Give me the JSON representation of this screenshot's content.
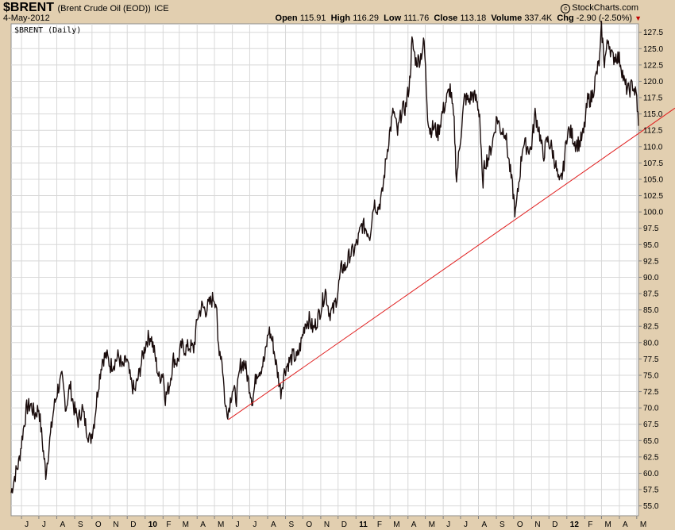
{
  "header": {
    "symbol": "$BRENT",
    "description": "(Brent Crude Oil (EOD))",
    "exchange": "ICE",
    "date": "4-May-2012",
    "copyright": "StockCharts.com",
    "open_label": "Open",
    "open": "115.91",
    "high_label": "High",
    "high": "116.29",
    "low_label": "Low",
    "low": "111.76",
    "close_label": "Close",
    "close": "113.18",
    "volume_label": "Volume",
    "volume": "337.4K",
    "chg_label": "Chg",
    "chg": "-2.90 (-2.50%)",
    "chg_color": "#c00000"
  },
  "chart_data": {
    "type": "line",
    "title": "$BRENT (Daily)",
    "ylim": [
      53.5,
      128.8
    ],
    "y_ticks": [
      55.0,
      57.5,
      60.0,
      62.5,
      65.0,
      67.5,
      70.0,
      72.5,
      75.0,
      77.5,
      80.0,
      82.5,
      85.0,
      87.5,
      90.0,
      92.5,
      95.0,
      97.5,
      100.0,
      102.5,
      105.0,
      107.5,
      110.0,
      112.5,
      115.0,
      117.5,
      120.0,
      122.5,
      125.0,
      127.5
    ],
    "y_tick_labels": [
      "55.0",
      "57.5",
      "60.0",
      "62.5",
      "65.0",
      "67.5",
      "70.0",
      "72.5",
      "75.0",
      "77.5",
      "80.0",
      "82.5",
      "85.0",
      "87.5",
      "90.0",
      "92.5",
      "95.0",
      "97.5",
      "100.0",
      "102.5",
      "105.0",
      "107.5",
      "110.0",
      "112.5",
      "115.0",
      "117.5",
      "120.0",
      "122.5",
      "125.0",
      "127.5"
    ],
    "x_range": [
      "2009-05-14",
      "2012-05-04"
    ],
    "x_ticks": [
      {
        "label": "J",
        "date": "2009-06-01",
        "bold": false
      },
      {
        "label": "J",
        "date": "2009-07-01",
        "bold": false
      },
      {
        "label": "A",
        "date": "2009-08-01",
        "bold": false
      },
      {
        "label": "S",
        "date": "2009-09-01",
        "bold": false
      },
      {
        "label": "O",
        "date": "2009-10-01",
        "bold": false
      },
      {
        "label": "N",
        "date": "2009-11-01",
        "bold": false
      },
      {
        "label": "D",
        "date": "2009-12-01",
        "bold": false
      },
      {
        "label": "10",
        "date": "2010-01-01",
        "bold": true
      },
      {
        "label": "F",
        "date": "2010-02-01",
        "bold": false
      },
      {
        "label": "M",
        "date": "2010-03-01",
        "bold": false
      },
      {
        "label": "A",
        "date": "2010-04-01",
        "bold": false
      },
      {
        "label": "M",
        "date": "2010-05-01",
        "bold": false
      },
      {
        "label": "J",
        "date": "2010-06-01",
        "bold": false
      },
      {
        "label": "J",
        "date": "2010-07-01",
        "bold": false
      },
      {
        "label": "A",
        "date": "2010-08-01",
        "bold": false
      },
      {
        "label": "S",
        "date": "2010-09-01",
        "bold": false
      },
      {
        "label": "O",
        "date": "2010-10-01",
        "bold": false
      },
      {
        "label": "N",
        "date": "2010-11-01",
        "bold": false
      },
      {
        "label": "D",
        "date": "2010-12-01",
        "bold": false
      },
      {
        "label": "11",
        "date": "2011-01-01",
        "bold": true
      },
      {
        "label": "F",
        "date": "2011-02-01",
        "bold": false
      },
      {
        "label": "M",
        "date": "2011-03-01",
        "bold": false
      },
      {
        "label": "A",
        "date": "2011-04-01",
        "bold": false
      },
      {
        "label": "M",
        "date": "2011-05-01",
        "bold": false
      },
      {
        "label": "J",
        "date": "2011-06-01",
        "bold": false
      },
      {
        "label": "J",
        "date": "2011-07-01",
        "bold": false
      },
      {
        "label": "A",
        "date": "2011-08-01",
        "bold": false
      },
      {
        "label": "S",
        "date": "2011-09-01",
        "bold": false
      },
      {
        "label": "O",
        "date": "2011-10-01",
        "bold": false
      },
      {
        "label": "N",
        "date": "2011-11-01",
        "bold": false
      },
      {
        "label": "D",
        "date": "2011-12-01",
        "bold": false
      },
      {
        "label": "12",
        "date": "2012-01-01",
        "bold": true
      },
      {
        "label": "F",
        "date": "2012-02-01",
        "bold": false
      },
      {
        "label": "M",
        "date": "2012-03-01",
        "bold": false
      },
      {
        "label": "A",
        "date": "2012-04-01",
        "bold": false
      },
      {
        "label": "M",
        "date": "2012-05-01",
        "bold": false
      }
    ],
    "grid": true,
    "series": [
      {
        "color": "#1a0c0c",
        "points": [
          [
            "2009-05-14",
            57.0
          ],
          [
            "2009-05-20",
            59.5
          ],
          [
            "2009-05-27",
            61.5
          ],
          [
            "2009-06-03",
            66.0
          ],
          [
            "2009-06-10",
            70.0
          ],
          [
            "2009-06-17",
            70.5
          ],
          [
            "2009-06-24",
            69.0
          ],
          [
            "2009-07-01",
            70.0
          ],
          [
            "2009-07-08",
            64.0
          ],
          [
            "2009-07-13",
            60.0
          ],
          [
            "2009-07-20",
            65.0
          ],
          [
            "2009-07-27",
            70.0
          ],
          [
            "2009-08-03",
            73.0
          ],
          [
            "2009-08-10",
            74.5
          ],
          [
            "2009-08-17",
            70.0
          ],
          [
            "2009-08-24",
            73.5
          ],
          [
            "2009-08-31",
            70.0
          ],
          [
            "2009-09-07",
            68.0
          ],
          [
            "2009-09-14",
            70.0
          ],
          [
            "2009-09-21",
            67.0
          ],
          [
            "2009-09-28",
            65.0
          ],
          [
            "2009-10-05",
            68.0
          ],
          [
            "2009-10-12",
            73.5
          ],
          [
            "2009-10-19",
            77.5
          ],
          [
            "2009-10-26",
            78.0
          ],
          [
            "2009-11-02",
            76.5
          ],
          [
            "2009-11-09",
            77.0
          ],
          [
            "2009-11-16",
            78.0
          ],
          [
            "2009-11-23",
            76.0
          ],
          [
            "2009-11-30",
            77.5
          ],
          [
            "2009-12-07",
            74.0
          ],
          [
            "2009-12-14",
            72.5
          ],
          [
            "2009-12-21",
            75.0
          ],
          [
            "2009-12-28",
            78.0
          ],
          [
            "2010-01-04",
            80.5
          ],
          [
            "2010-01-11",
            81.0
          ],
          [
            "2010-01-18",
            78.0
          ],
          [
            "2010-01-25",
            74.5
          ],
          [
            "2010-02-01",
            75.5
          ],
          [
            "2010-02-05",
            71.5
          ],
          [
            "2010-02-12",
            73.5
          ],
          [
            "2010-02-19",
            77.5
          ],
          [
            "2010-02-26",
            77.0
          ],
          [
            "2010-03-05",
            79.5
          ],
          [
            "2010-03-12",
            79.0
          ],
          [
            "2010-03-19",
            79.5
          ],
          [
            "2010-03-26",
            79.0
          ],
          [
            "2010-04-02",
            84.0
          ],
          [
            "2010-04-09",
            85.5
          ],
          [
            "2010-04-16",
            85.0
          ],
          [
            "2010-04-23",
            86.0
          ],
          [
            "2010-04-30",
            87.0
          ],
          [
            "2010-05-04",
            86.0
          ],
          [
            "2010-05-07",
            80.0
          ],
          [
            "2010-05-14",
            77.5
          ],
          [
            "2010-05-20",
            70.0
          ],
          [
            "2010-05-25",
            69.5
          ],
          [
            "2010-06-01",
            73.0
          ],
          [
            "2010-06-08",
            71.5
          ],
          [
            "2010-06-15",
            76.5
          ],
          [
            "2010-06-22",
            77.0
          ],
          [
            "2010-06-29",
            74.0
          ],
          [
            "2010-07-06",
            71.0
          ],
          [
            "2010-07-13",
            75.5
          ],
          [
            "2010-07-20",
            76.0
          ],
          [
            "2010-07-27",
            77.5
          ],
          [
            "2010-08-03",
            82.0
          ],
          [
            "2010-08-10",
            80.0
          ],
          [
            "2010-08-17",
            76.0
          ],
          [
            "2010-08-24",
            72.5
          ],
          [
            "2010-08-31",
            76.0
          ],
          [
            "2010-09-07",
            77.0
          ],
          [
            "2010-09-14",
            78.0
          ],
          [
            "2010-09-21",
            77.5
          ],
          [
            "2010-09-28",
            80.0
          ],
          [
            "2010-10-05",
            83.0
          ],
          [
            "2010-10-12",
            83.5
          ],
          [
            "2010-10-19",
            82.0
          ],
          [
            "2010-10-26",
            83.5
          ],
          [
            "2010-11-02",
            85.5
          ],
          [
            "2010-11-09",
            88.0
          ],
          [
            "2010-11-16",
            84.5
          ],
          [
            "2010-11-23",
            85.0
          ],
          [
            "2010-11-30",
            87.5
          ],
          [
            "2010-12-07",
            91.5
          ],
          [
            "2010-12-14",
            91.5
          ],
          [
            "2010-12-21",
            93.5
          ],
          [
            "2010-12-28",
            94.0
          ],
          [
            "2011-01-04",
            95.5
          ],
          [
            "2011-01-11",
            98.0
          ],
          [
            "2011-01-18",
            97.5
          ],
          [
            "2011-01-25",
            96.5
          ],
          [
            "2011-02-01",
            101.5
          ],
          [
            "2011-02-08",
            100.5
          ],
          [
            "2011-02-15",
            102.5
          ],
          [
            "2011-02-22",
            108.0
          ],
          [
            "2011-02-28",
            112.0
          ],
          [
            "2011-03-07",
            115.5
          ],
          [
            "2011-03-14",
            112.0
          ],
          [
            "2011-03-21",
            115.5
          ],
          [
            "2011-03-28",
            116.0
          ],
          [
            "2011-04-04",
            120.0
          ],
          [
            "2011-04-08",
            126.0
          ],
          [
            "2011-04-15",
            123.0
          ],
          [
            "2011-04-22",
            123.5
          ],
          [
            "2011-04-29",
            126.0
          ],
          [
            "2011-05-05",
            115.0
          ],
          [
            "2011-05-09",
            112.5
          ],
          [
            "2011-05-16",
            113.0
          ],
          [
            "2011-05-23",
            112.0
          ],
          [
            "2011-05-30",
            115.0
          ],
          [
            "2011-06-06",
            117.0
          ],
          [
            "2011-06-13",
            119.0
          ],
          [
            "2011-06-20",
            113.5
          ],
          [
            "2011-06-24",
            105.0
          ],
          [
            "2011-07-01",
            111.5
          ],
          [
            "2011-07-08",
            117.5
          ],
          [
            "2011-07-15",
            117.0
          ],
          [
            "2011-07-22",
            118.0
          ],
          [
            "2011-07-29",
            117.0
          ],
          [
            "2011-08-03",
            115.0
          ],
          [
            "2011-08-08",
            104.0
          ],
          [
            "2011-08-12",
            107.5
          ],
          [
            "2011-08-19",
            108.5
          ],
          [
            "2011-08-26",
            111.0
          ],
          [
            "2011-09-02",
            114.5
          ],
          [
            "2011-09-09",
            112.5
          ],
          [
            "2011-09-16",
            112.5
          ],
          [
            "2011-09-23",
            107.5
          ],
          [
            "2011-09-30",
            103.0
          ],
          [
            "2011-10-04",
            99.5
          ],
          [
            "2011-10-10",
            104.5
          ],
          [
            "2011-10-17",
            110.5
          ],
          [
            "2011-10-24",
            110.0
          ],
          [
            "2011-10-31",
            109.5
          ],
          [
            "2011-11-07",
            115.0
          ],
          [
            "2011-11-14",
            112.5
          ],
          [
            "2011-11-21",
            108.5
          ],
          [
            "2011-11-28",
            111.0
          ],
          [
            "2011-12-05",
            110.0
          ],
          [
            "2011-12-12",
            107.5
          ],
          [
            "2011-12-19",
            104.0
          ],
          [
            "2011-12-26",
            106.5
          ],
          [
            "2012-01-02",
            112.5
          ],
          [
            "2012-01-09",
            112.0
          ],
          [
            "2012-01-16",
            110.5
          ],
          [
            "2012-01-23",
            110.5
          ],
          [
            "2012-01-30",
            112.0
          ],
          [
            "2012-02-06",
            117.0
          ],
          [
            "2012-02-13",
            117.5
          ],
          [
            "2012-02-20",
            120.5
          ],
          [
            "2012-02-27",
            123.5
          ],
          [
            "2012-03-01",
            128.0
          ],
          [
            "2012-03-06",
            123.0
          ],
          [
            "2012-03-13",
            126.5
          ],
          [
            "2012-03-20",
            123.5
          ],
          [
            "2012-03-27",
            124.0
          ],
          [
            "2012-04-03",
            123.0
          ],
          [
            "2012-04-10",
            119.5
          ],
          [
            "2012-04-17",
            118.5
          ],
          [
            "2012-04-24",
            119.5
          ],
          [
            "2012-05-01",
            117.5
          ],
          [
            "2012-05-04",
            113.18
          ]
        ]
      },
      {
        "color": "#e02020",
        "points": [
          [
            "2010-05-25",
            68.2
          ],
          [
            "2012-05-04",
            112.0
          ]
        ],
        "extend_to_edge": true
      }
    ]
  }
}
